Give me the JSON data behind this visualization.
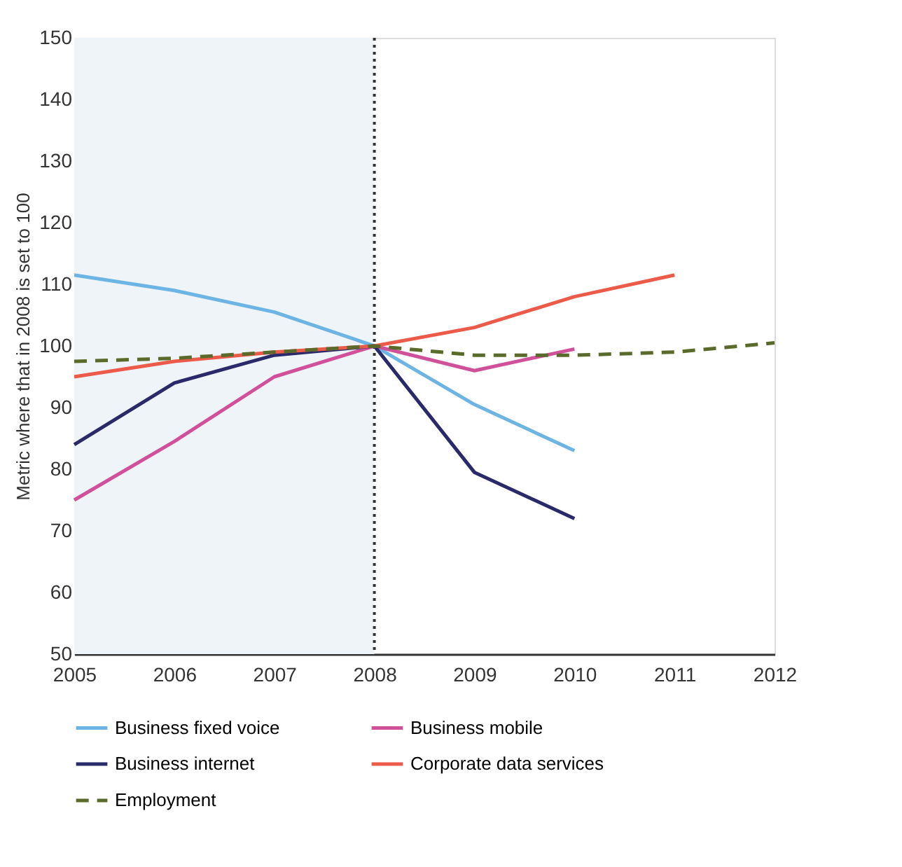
{
  "chart_data": {
    "type": "line",
    "ylabel": "Metric where that in 2008 is set to 100",
    "x": [
      2005,
      2006,
      2007,
      2008,
      2009,
      2010,
      2011,
      2012
    ],
    "xlim": [
      2005,
      2012
    ],
    "xticks": [
      2005,
      2006,
      2007,
      2008,
      2009,
      2010,
      2011,
      2012
    ],
    "ylim": [
      50,
      150
    ],
    "yticks": [
      50,
      60,
      70,
      80,
      90,
      100,
      110,
      120,
      130,
      140,
      150
    ],
    "grid": false,
    "legend": "bottom",
    "marker": "none",
    "series": [
      {
        "name": "Business fixed voice",
        "color": "#6cb4e4",
        "line_style": "solid",
        "values": [
          111.5,
          109,
          105.5,
          100,
          90.5,
          83,
          null,
          null
        ]
      },
      {
        "name": "Business mobile",
        "color": "#d0509a",
        "line_style": "solid",
        "values": [
          75,
          84.5,
          95,
          100,
          96,
          99.5,
          null,
          null
        ]
      },
      {
        "name": "Business internet",
        "color": "#2a2a6a",
        "line_style": "solid",
        "values": [
          84,
          94,
          98.5,
          100,
          79.5,
          72,
          null,
          null
        ]
      },
      {
        "name": "Corporate data services",
        "color": "#ec5a4a",
        "line_style": "solid",
        "values": [
          95,
          97.5,
          99,
          100,
          103,
          108,
          111.5,
          null
        ]
      },
      {
        "name": "Employment",
        "color": "#5a6a2a",
        "line_style": "dashed",
        "values": [
          97.5,
          98,
          99,
          100,
          98.5,
          98.5,
          99,
          100.5
        ]
      }
    ],
    "bands": [
      {
        "axis": "x",
        "from": 2005,
        "to": 2008,
        "color": "#eef4f8"
      }
    ],
    "ref_lines": [
      {
        "axis": "x",
        "value": 2008,
        "color": "#333333",
        "line_style": "dotted"
      }
    ]
  }
}
